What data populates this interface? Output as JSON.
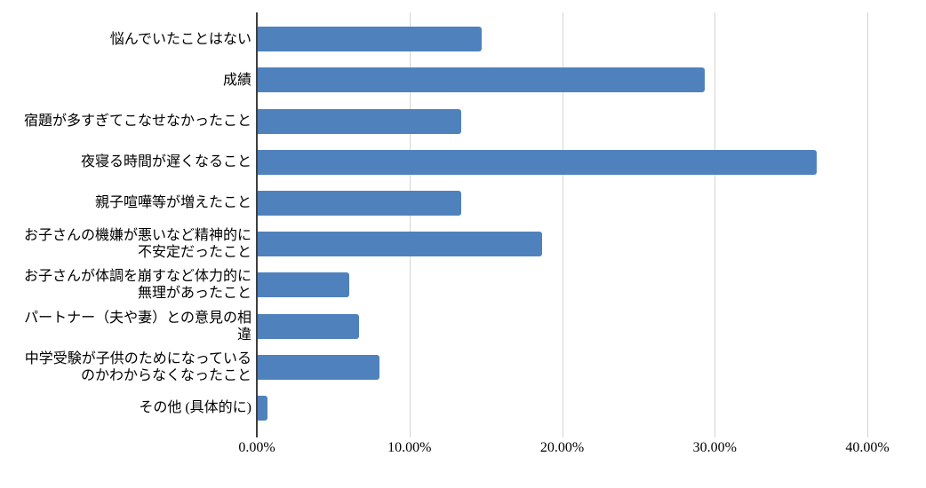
{
  "chart_data": {
    "type": "bar",
    "orientation": "horizontal",
    "title": "",
    "xlabel": "",
    "ylabel": "",
    "categories": [
      "悩んでいたことはない",
      "成績",
      "宿題が多すぎてこなせなかったこと",
      "夜寝る時間が遅くなること",
      "親子喧嘩等が増えたこと",
      "お子さんの機嫌が悪いなど精神的に\n不安定だったこと",
      "お子さんが体調を崩すなど体力的に\n無理があったこと",
      "パートナー（夫や妻）との意見の相\n違",
      "中学受験が子供のためになっている\nのかわからなくなったこと",
      "その他 (具体的に)"
    ],
    "values": [
      14.67,
      29.33,
      13.33,
      36.67,
      13.33,
      18.67,
      6.0,
      6.67,
      8.0,
      0.67
    ],
    "value_unit": "%",
    "xlim": [
      0,
      40
    ],
    "x_tick_labels": [
      "0.00%",
      "10.00%",
      "20.00%",
      "30.00%",
      "40.00%"
    ],
    "grid": true,
    "legend": false
  },
  "colors": {
    "bar": "#4f81bd",
    "gridline": "#d4d4d4",
    "axis_line": "#3f3f3f",
    "text": "#000000",
    "background": "#ffffff"
  }
}
